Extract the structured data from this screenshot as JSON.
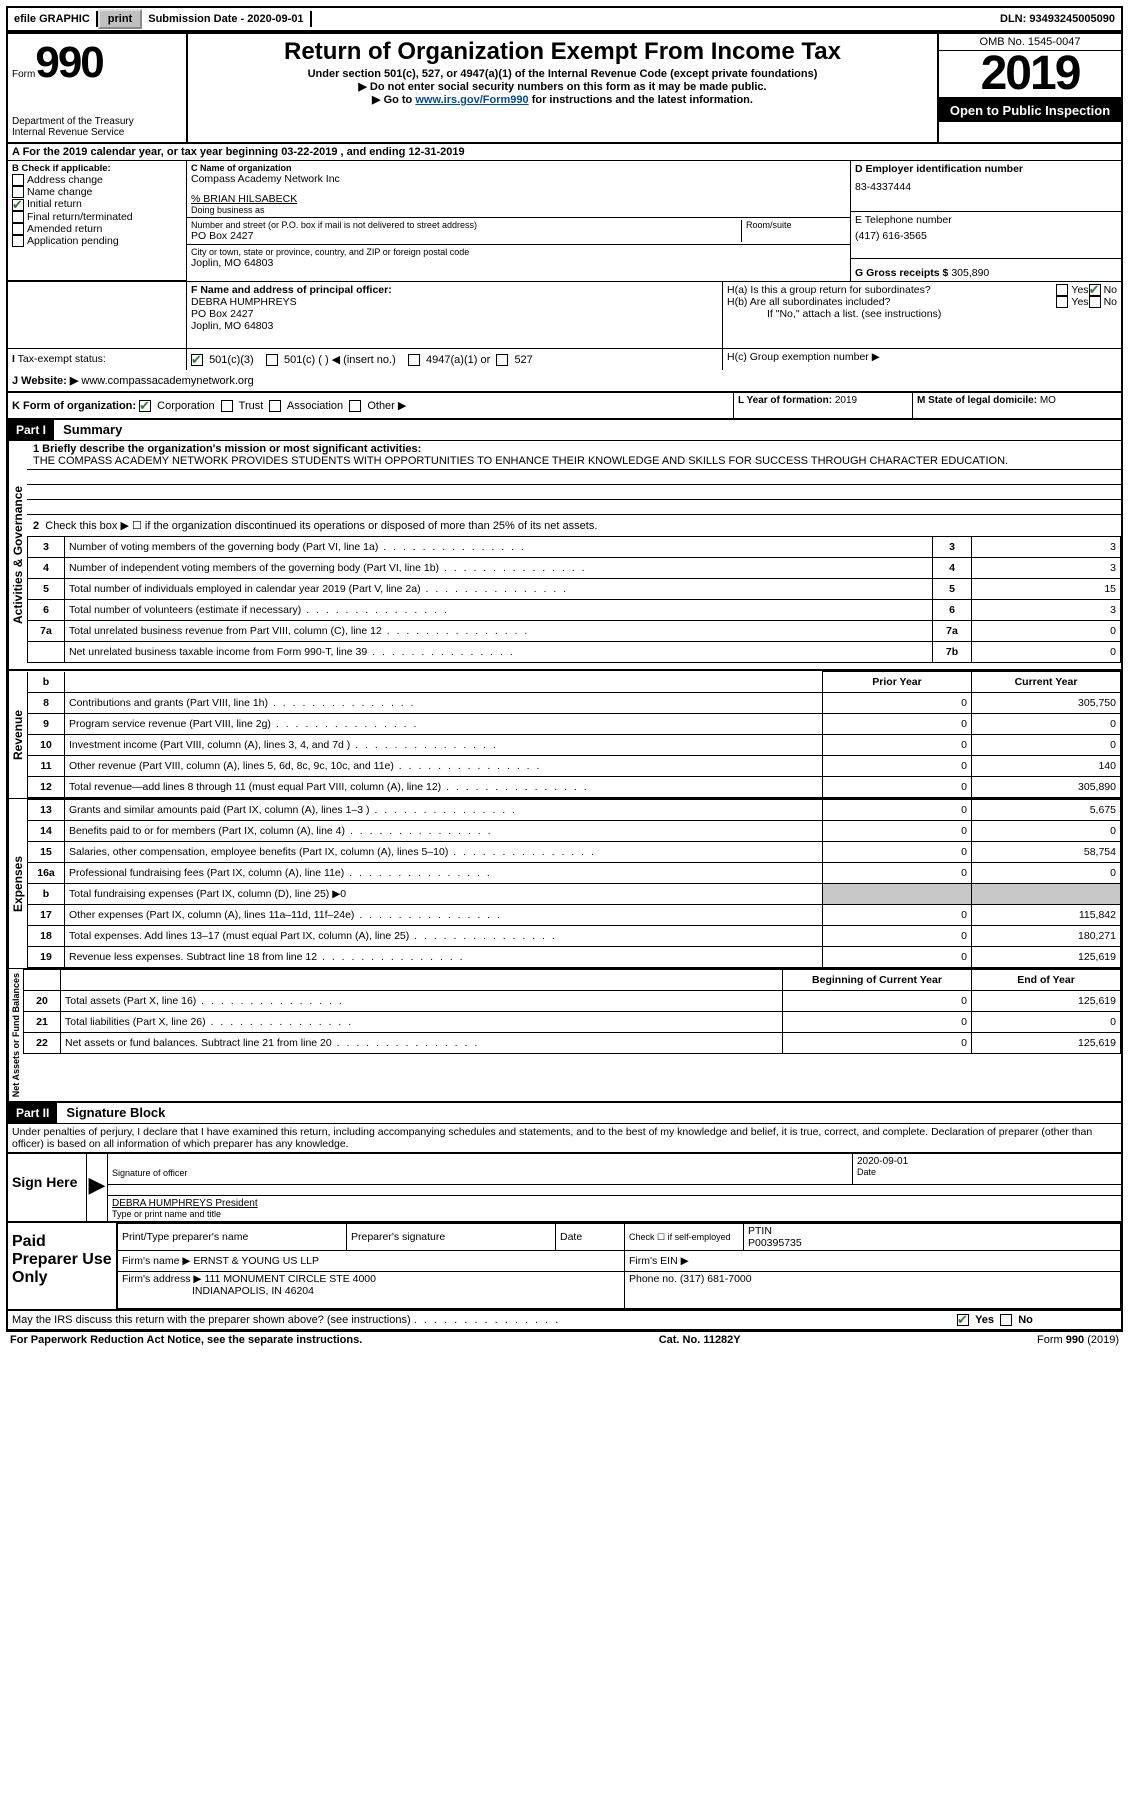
{
  "top_bar": {
    "efile": "efile GRAPHIC",
    "print": "print",
    "sub_label": "Submission Date -",
    "sub_date": "2020-09-01",
    "dln_label": "DLN:",
    "dln": "93493245005090"
  },
  "header": {
    "form_word": "Form",
    "form_num": "990",
    "dept": "Department of the Treasury",
    "irs": "Internal Revenue Service",
    "title": "Return of Organization Exempt From Income Tax",
    "subtitle": "Under section 501(c), 527, or 4947(a)(1) of the Internal Revenue Code (except private foundations)",
    "no_ssn": "▶ Do not enter social security numbers on this form as it may be made public.",
    "goto_pre": "▶ Go to ",
    "goto_link": "www.irs.gov/Form990",
    "goto_post": " for instructions and the latest information.",
    "omb": "OMB No. 1545-0047",
    "year": "2019",
    "open": "Open to Public Inspection"
  },
  "A": "A For the 2019 calendar year, or tax year beginning 03-22-2019  , and ending 12-31-2019",
  "B": {
    "label": "B Check if applicable:",
    "addr": "Address change",
    "name": "Name change",
    "init": "Initial return",
    "final": "Final return/terminated",
    "amend": "Amended return",
    "app": "Application pending"
  },
  "C": {
    "name_label": "C Name of organization",
    "name": "Compass Academy Network Inc",
    "care": "% BRIAN HILSABECK",
    "dba_label": "Doing business as",
    "dba": "",
    "street_label": "Number and street (or P.O. box if mail is not delivered to street address)",
    "room_label": "Room/suite",
    "street": "PO Box 2427",
    "city_label": "City or town, state or province, country, and ZIP or foreign postal code",
    "city": "Joplin, MO  64803"
  },
  "D": {
    "label": "D Employer identification number",
    "value": "83-4337444"
  },
  "E": {
    "label": "E Telephone number",
    "value": "(417) 616-3565"
  },
  "G": {
    "label": "G Gross receipts $",
    "value": "305,890"
  },
  "F": {
    "label": "F  Name and address of principal officer:",
    "name": "DEBRA HUMPHREYS",
    "addr1": "PO Box 2427",
    "addr2": "Joplin, MO  64803"
  },
  "H": {
    "a": "H(a)  Is this a group return for subordinates?",
    "b": "H(b)  Are all subordinates included?",
    "b_note": "If \"No,\" attach a list. (see instructions)",
    "c": "H(c)  Group exemption number ▶",
    "yes": "Yes",
    "no": "No"
  },
  "I": {
    "label": "Tax-exempt status:",
    "c3": "501(c)(3)",
    "c": "501(c) (  ) ◀ (insert no.)",
    "a1": "4947(a)(1) or",
    "s527": "527"
  },
  "J": {
    "label": "J   Website: ▶",
    "value": "www.compassacademynetwork.org"
  },
  "K": {
    "label": "K Form of organization:",
    "corp": "Corporation",
    "trust": "Trust",
    "assoc": "Association",
    "other": "Other ▶"
  },
  "L": {
    "label": "L Year of formation:",
    "value": "2019"
  },
  "M": {
    "label": "M State of legal domicile:",
    "value": "MO"
  },
  "part1": {
    "tag": "Part I",
    "title": "Summary"
  },
  "mission": {
    "q": "1  Briefly describe the organization's mission or most significant activities:",
    "text": "THE COMPASS ACADEMY NETWORK PROVIDES STUDENTS WITH OPPORTUNITIES TO ENHANCE THEIR KNOWLEDGE AND SKILLS FOR SUCCESS THROUGH CHARACTER EDUCATION."
  },
  "line2": "Check this box ▶ ☐  if the organization discontinued its operations or disposed of more than 25% of its net assets.",
  "sections": {
    "gov": "Activities & Governance",
    "rev": "Revenue",
    "exp": "Expenses",
    "net": "Net Assets or Fund Balances"
  },
  "gov_rows": [
    {
      "n": "3",
      "t": "Number of voting members of the governing body (Part VI, line 1a)",
      "k": "3",
      "v": "3"
    },
    {
      "n": "4",
      "t": "Number of independent voting members of the governing body (Part VI, line 1b)",
      "k": "4",
      "v": "3"
    },
    {
      "n": "5",
      "t": "Total number of individuals employed in calendar year 2019 (Part V, line 2a)",
      "k": "5",
      "v": "15"
    },
    {
      "n": "6",
      "t": "Total number of volunteers (estimate if necessary)",
      "k": "6",
      "v": "3"
    },
    {
      "n": "7a",
      "t": "Total unrelated business revenue from Part VIII, column (C), line 12",
      "k": "7a",
      "v": "0"
    },
    {
      "n": "",
      "t": "Net unrelated business taxable income from Form 990-T, line 39",
      "k": "7b",
      "v": "0"
    }
  ],
  "col_hdr": {
    "prior": "Prior Year",
    "current": "Current Year"
  },
  "rev_rows": [
    {
      "n": "8",
      "t": "Contributions and grants (Part VIII, line 1h)",
      "p": "0",
      "c": "305,750"
    },
    {
      "n": "9",
      "t": "Program service revenue (Part VIII, line 2g)",
      "p": "0",
      "c": "0"
    },
    {
      "n": "10",
      "t": "Investment income (Part VIII, column (A), lines 3, 4, and 7d )",
      "p": "0",
      "c": "0"
    },
    {
      "n": "11",
      "t": "Other revenue (Part VIII, column (A), lines 5, 6d, 8c, 9c, 10c, and 11e)",
      "p": "0",
      "c": "140"
    },
    {
      "n": "12",
      "t": "Total revenue—add lines 8 through 11 (must equal Part VIII, column (A), line 12)",
      "p": "0",
      "c": "305,890"
    }
  ],
  "exp_rows": [
    {
      "n": "13",
      "t": "Grants and similar amounts paid (Part IX, column (A), lines 1–3 )",
      "p": "0",
      "c": "5,675"
    },
    {
      "n": "14",
      "t": "Benefits paid to or for members (Part IX, column (A), line 4)",
      "p": "0",
      "c": "0"
    },
    {
      "n": "15",
      "t": "Salaries, other compensation, employee benefits (Part IX, column (A), lines 5–10)",
      "p": "0",
      "c": "58,754"
    },
    {
      "n": "16a",
      "t": "Professional fundraising fees (Part IX, column (A), line 11e)",
      "p": "0",
      "c": "0"
    },
    {
      "n": "b",
      "t": "Total fundraising expenses (Part IX, column (D), line 25) ▶0",
      "p": "",
      "c": "",
      "shade": true
    },
    {
      "n": "17",
      "t": "Other expenses (Part IX, column (A), lines 11a–11d, 11f–24e)",
      "p": "0",
      "c": "115,842"
    },
    {
      "n": "18",
      "t": "Total expenses. Add lines 13–17 (must equal Part IX, column (A), line 25)",
      "p": "0",
      "c": "180,271"
    },
    {
      "n": "19",
      "t": "Revenue less expenses. Subtract line 18 from line 12",
      "p": "0",
      "c": "125,619"
    }
  ],
  "net_hdr": {
    "beg": "Beginning of Current Year",
    "end": "End of Year"
  },
  "net_rows": [
    {
      "n": "20",
      "t": "Total assets (Part X, line 16)",
      "p": "0",
      "c": "125,619"
    },
    {
      "n": "21",
      "t": "Total liabilities (Part X, line 26)",
      "p": "0",
      "c": "0"
    },
    {
      "n": "22",
      "t": "Net assets or fund balances. Subtract line 21 from line 20",
      "p": "0",
      "c": "125,619"
    }
  ],
  "part2": {
    "tag": "Part II",
    "title": "Signature Block"
  },
  "penalty": "Under penalties of perjury, I declare that I have examined this return, including accompanying schedules and statements, and to the best of my knowledge and belief, it is true, correct, and complete. Declaration of preparer (other than officer) is based on all information of which preparer has any knowledge.",
  "sign": {
    "here": "Sign Here",
    "sig_officer": "Signature of officer",
    "date_label": "Date",
    "date": "2020-09-01",
    "name": "DEBRA HUMPHREYS  President",
    "name_label": "Type or print name and title"
  },
  "prep": {
    "title": "Paid Preparer Use Only",
    "col1": "Print/Type preparer's name",
    "col2": "Preparer's signature",
    "col3": "Date",
    "col4a": "Check ☐ if self-employed",
    "col5a": "PTIN",
    "col5b": "P00395735",
    "firm_label": "Firm's name    ▶",
    "firm": "ERNST & YOUNG US LLP",
    "ein_label": "Firm's EIN ▶",
    "addr_label": "Firm's address ▶",
    "addr1": "111 MONUMENT CIRCLE STE 4000",
    "addr2": "INDIANAPOLIS, IN  46204",
    "phone_label": "Phone no.",
    "phone": "(317) 681-7000"
  },
  "discuss": "May the IRS discuss this return with the preparer shown above? (see instructions)",
  "footer": {
    "pra": "For Paperwork Reduction Act Notice, see the separate instructions.",
    "cat": "Cat. No. 11282Y",
    "form": "Form 990 (2019)"
  },
  "colors": {
    "link": "#004b9b",
    "check": "#2e7d32",
    "shade": "#c8c8c8"
  }
}
